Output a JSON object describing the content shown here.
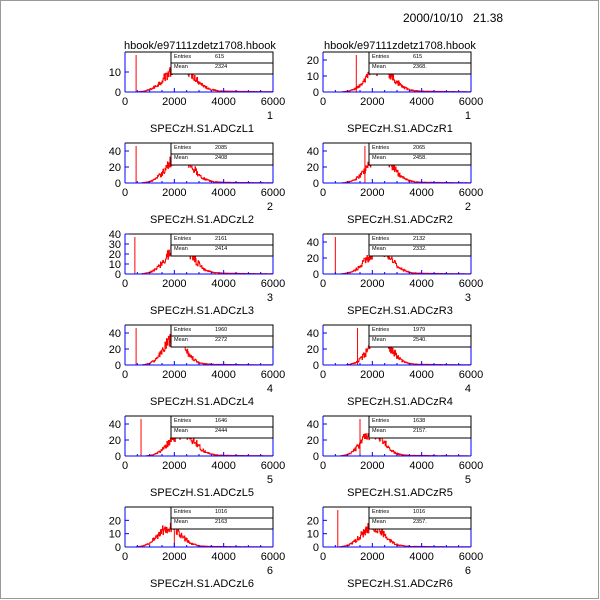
{
  "header": {
    "datetime": "2000/10/10   21.38",
    "left_file": "hbook/e97111zdetz1708.hbook",
    "right_file": "hbook/e97111zdetz1708.hbook"
  },
  "stat_labels": {
    "entries": "Entries",
    "mean": "Mean"
  },
  "colors": {
    "histogram": "#ff0000",
    "cut_line": "#ff0000",
    "axis": "#0000ff",
    "frame": "#000000"
  },
  "chart_data": [
    {
      "type": "histogram",
      "title": "SPECzH.S1.ADCzL1",
      "page_number": "1",
      "entries": "615",
      "mean": "2324",
      "xlim": [
        0,
        6000
      ],
      "ylim": [
        0,
        20
      ],
      "xticks": [
        "0",
        "2000",
        "4000",
        "6000"
      ],
      "yticks": [
        "0",
        "10"
      ],
      "peak": 2200,
      "width": 550,
      "height": 13,
      "cut": 450,
      "tail": 0.08
    },
    {
      "type": "histogram",
      "title": "SPECzH.S1.ADCzR1",
      "page_number": "1",
      "entries": "615",
      "mean": "2368.",
      "xlim": [
        0,
        6000
      ],
      "ylim": [
        0,
        25
      ],
      "xticks": [
        "0",
        "2000",
        "4000",
        "6000"
      ],
      "yticks": [
        "0",
        "10",
        "20"
      ],
      "peak": 2300,
      "width": 500,
      "height": 15,
      "cut": 1350,
      "tail": 0.08
    },
    {
      "type": "histogram",
      "title": "SPECzH.S1.ADCzL2",
      "page_number": "2",
      "entries": "2085",
      "mean": "2408",
      "xlim": [
        0,
        6000
      ],
      "ylim": [
        0,
        50
      ],
      "xticks": [
        "0",
        "2000",
        "4000",
        "6000"
      ],
      "yticks": [
        "0",
        "20",
        "40"
      ],
      "peak": 2200,
      "width": 500,
      "height": 33,
      "cut": 450,
      "tail": 0.07
    },
    {
      "type": "histogram",
      "title": "SPECzH.S1.ADCzR2",
      "page_number": "2",
      "entries": "2065",
      "mean": "2458.",
      "xlim": [
        0,
        6000
      ],
      "ylim": [
        0,
        50
      ],
      "xticks": [
        "0",
        "2000",
        "4000",
        "6000"
      ],
      "yticks": [
        "0",
        "20",
        "40"
      ],
      "peak": 2300,
      "width": 500,
      "height": 33,
      "cut": 1700,
      "tail": 0.07
    },
    {
      "type": "histogram",
      "title": "SPECzH.S1.ADCzL3",
      "page_number": "3",
      "entries": "2161",
      "mean": "2414",
      "xlim": [
        0,
        6000
      ],
      "ylim": [
        0,
        40
      ],
      "xticks": [
        "0",
        "2000",
        "4000",
        "6000"
      ],
      "yticks": [
        "0",
        "10",
        "20",
        "30",
        "40"
      ],
      "peak": 2200,
      "width": 500,
      "height": 30,
      "cut": 400,
      "tail": 0.07
    },
    {
      "type": "histogram",
      "title": "SPECzH.S1.ADCzR3",
      "page_number": "3",
      "entries": "2132",
      "mean": "2332.",
      "xlim": [
        0,
        6000
      ],
      "ylim": [
        0,
        50
      ],
      "xticks": [
        "0",
        "2000",
        "4000",
        "6000"
      ],
      "yticks": [
        "0",
        "20",
        "40"
      ],
      "peak": 2250,
      "width": 500,
      "height": 30,
      "cut": 500,
      "tail": 0.07
    },
    {
      "type": "histogram",
      "title": "SPECzH.S1.ADCzL4",
      "page_number": "4",
      "entries": "1960",
      "mean": "2272",
      "xlim": [
        0,
        6000
      ],
      "ylim": [
        0,
        50
      ],
      "xticks": [
        "0",
        "2000",
        "4000",
        "6000"
      ],
      "yticks": [
        "0",
        "20",
        "40"
      ],
      "peak": 2000,
      "width": 430,
      "height": 33,
      "cut": 450,
      "tail": 0.06
    },
    {
      "type": "histogram",
      "title": "SPECzH.S1.ADCzR4",
      "page_number": "4",
      "entries": "1979",
      "mean": "2540.",
      "xlim": [
        0,
        6000
      ],
      "ylim": [
        0,
        50
      ],
      "xticks": [
        "0",
        "2000",
        "4000",
        "6000"
      ],
      "yticks": [
        "0",
        "20",
        "40"
      ],
      "peak": 2300,
      "width": 450,
      "height": 33,
      "cut": 1400,
      "tail": 0.06
    },
    {
      "type": "histogram",
      "title": "SPECzH.S1.ADCzL5",
      "page_number": "5",
      "entries": "1646",
      "mean": "2444",
      "xlim": [
        0,
        6000
      ],
      "ylim": [
        0,
        50
      ],
      "xticks": [
        "0",
        "2000",
        "4000",
        "6000"
      ],
      "yticks": [
        "0",
        "20",
        "40"
      ],
      "peak": 2300,
      "width": 480,
      "height": 30,
      "cut": 650,
      "tail": 0.07
    },
    {
      "type": "histogram",
      "title": "SPECzH.S1.ADCzR5",
      "page_number": "5",
      "entries": "1638",
      "mean": "2157.",
      "xlim": [
        0,
        6000
      ],
      "ylim": [
        0,
        50
      ],
      "xticks": [
        "0",
        "2000",
        "4000",
        "6000"
      ],
      "yticks": [
        "0",
        "20",
        "40"
      ],
      "peak": 2000,
      "width": 430,
      "height": 30,
      "cut": 1500,
      "tail": 0.06
    },
    {
      "type": "histogram",
      "title": "SPECzH.S1.ADCzL6",
      "page_number": "6",
      "entries": "1016",
      "mean": "2163",
      "xlim": [
        0,
        6000
      ],
      "ylim": [
        0,
        30
      ],
      "xticks": [
        "0",
        "2000",
        "4000",
        "6000"
      ],
      "yticks": [
        "0",
        "10",
        "20"
      ],
      "peak": 1800,
      "width": 450,
      "height": 15,
      "cut": 2000,
      "tail": 0.07
    },
    {
      "type": "histogram",
      "title": "SPECzH.S1.ADCzR6",
      "page_number": "6",
      "entries": "1016",
      "mean": "2357.",
      "xlim": [
        0,
        6000
      ],
      "ylim": [
        0,
        30
      ],
      "xticks": [
        "0",
        "2000",
        "4000",
        "6000"
      ],
      "yticks": [
        "0",
        "10",
        "20"
      ],
      "peak": 2000,
      "width": 450,
      "height": 15,
      "cut": 600,
      "tail": 0.07
    }
  ]
}
